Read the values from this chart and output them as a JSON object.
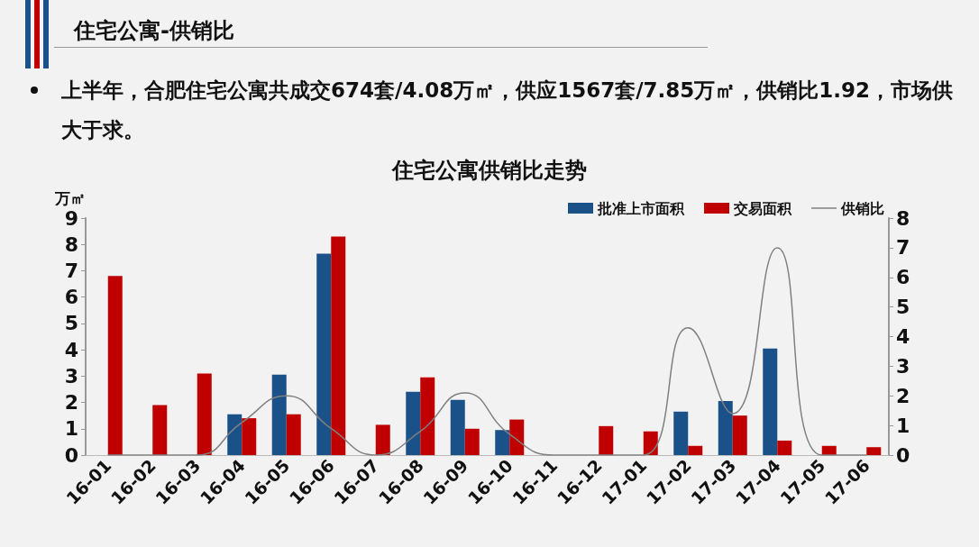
{
  "chart_data": {
    "type": "bar",
    "title": "住宅公寓-供销比",
    "subtitle": "住宅公寓供销比走势",
    "annotations": [
      "上半年，合肥住宅公寓共成交674套/4.08万㎡，供应1567套/7.85万㎡，供销比1.92，市场供大于求。"
    ],
    "ylabel": "万㎡",
    "categories": [
      "16-01",
      "16-02",
      "16-03",
      "16-04",
      "16-05",
      "16-06",
      "16-07",
      "16-08",
      "16-09",
      "16-10",
      "16-11",
      "16-12",
      "17-01",
      "17-02",
      "17-03",
      "17-04",
      "17-05",
      "17-06"
    ],
    "series": [
      {
        "name": "批准上市面积",
        "color": "#1a5189",
        "values": [
          null,
          null,
          null,
          1.55,
          3.05,
          7.65,
          null,
          2.4,
          2.1,
          0.95,
          null,
          null,
          null,
          1.65,
          2.05,
          4.05,
          null,
          null
        ]
      },
      {
        "name": "交易面积",
        "color": "#c00000",
        "values": [
          6.8,
          1.9,
          3.1,
          1.4,
          1.55,
          8.3,
          1.15,
          2.95,
          1.0,
          1.35,
          null,
          1.1,
          0.9,
          0.35,
          1.5,
          0.55,
          0.35,
          0.3
        ]
      },
      {
        "name": "供销比",
        "type": "line",
        "axis": "y2",
        "color": "#808080",
        "values": [
          0,
          0,
          0,
          1.1,
          2.0,
          0.9,
          0,
          0.8,
          2.1,
          0.7,
          0,
          0,
          0,
          4.3,
          1.4,
          7.0,
          0,
          0
        ]
      }
    ],
    "ylim": [
      0,
      9
    ],
    "yticks": [
      0,
      1,
      2,
      3,
      4,
      5,
      6,
      7,
      8,
      9
    ],
    "y2lim": [
      0,
      8
    ],
    "y2ticks": [
      0,
      1,
      2,
      3,
      4,
      5,
      6,
      7,
      8
    ],
    "grid": false,
    "legend": "top right",
    "marker": "none",
    "line_style": "solid"
  }
}
